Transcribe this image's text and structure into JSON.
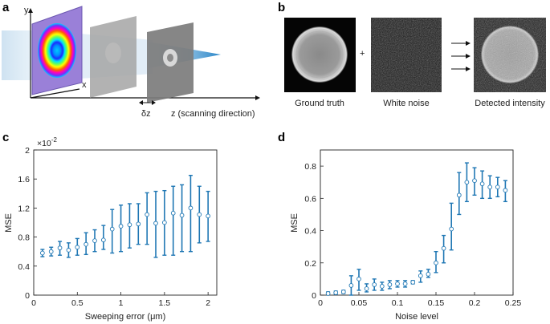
{
  "panels": {
    "a": {
      "label": "a",
      "axis_y": "y",
      "axis_x": "x",
      "delta_z": "δz",
      "z_label": "z (scanning direction)"
    },
    "b": {
      "label": "b",
      "plus": "+",
      "captions": [
        "Ground truth",
        "White noise",
        "Detected intensity"
      ]
    },
    "c": {
      "label": "c"
    },
    "d": {
      "label": "d"
    }
  },
  "colors": {
    "series": "#1f77b4",
    "axis": "#222222"
  },
  "chart_data": [
    {
      "id": "c",
      "type": "scatter",
      "xlabel": "Sweeping error (μm)",
      "ylabel": "MSE",
      "multiplier": "×10",
      "multiplier_exp": "-2",
      "xlim": [
        0,
        2.1
      ],
      "ylim": [
        0,
        2
      ],
      "xticks": [
        0,
        0.5,
        1,
        1.5,
        2
      ],
      "xtick_labels": [
        "0",
        "0.5",
        "1",
        "1.5",
        "2"
      ],
      "yticks": [
        0,
        0.4,
        0.8,
        1.2,
        1.6,
        2
      ],
      "ytick_labels": [
        "0",
        "0.4",
        "0.8",
        "1.2",
        "1.6",
        "2"
      ],
      "x": [
        0.1,
        0.2,
        0.3,
        0.4,
        0.5,
        0.6,
        0.7,
        0.8,
        0.9,
        1.0,
        1.1,
        1.2,
        1.3,
        1.4,
        1.5,
        1.6,
        1.7,
        1.8,
        1.9,
        2.0
      ],
      "y": [
        0.58,
        0.6,
        0.65,
        0.62,
        0.66,
        0.7,
        0.75,
        0.76,
        0.91,
        0.95,
        0.97,
        0.98,
        1.11,
        0.99,
        1.0,
        1.13,
        1.1,
        1.2,
        1.11,
        1.09
      ],
      "err_low": [
        0.53,
        0.54,
        0.55,
        0.52,
        0.55,
        0.56,
        0.6,
        0.63,
        0.58,
        0.6,
        0.65,
        0.7,
        0.7,
        0.52,
        0.55,
        0.55,
        0.6,
        0.6,
        0.72,
        0.74
      ],
      "err_high": [
        0.63,
        0.66,
        0.74,
        0.72,
        0.78,
        0.86,
        0.9,
        0.96,
        1.18,
        1.24,
        1.26,
        1.26,
        1.41,
        1.43,
        1.44,
        1.5,
        1.52,
        1.65,
        1.5,
        1.43
      ]
    },
    {
      "id": "d",
      "type": "scatter",
      "xlabel": "Noise level",
      "ylabel": "MSE",
      "xlim": [
        0,
        0.25
      ],
      "ylim": [
        0,
        0.9
      ],
      "xticks": [
        0,
        0.05,
        0.1,
        0.15,
        0.2,
        0.25
      ],
      "xtick_labels": [
        "0",
        "0.05",
        "0.1",
        "0.15",
        "0.2",
        "0.25"
      ],
      "yticks": [
        0,
        0.2,
        0.4,
        0.6,
        0.8
      ],
      "ytick_labels": [
        "0",
        "0.2",
        "0.4",
        "0.6",
        "0.8"
      ],
      "x": [
        0.01,
        0.02,
        0.03,
        0.04,
        0.05,
        0.06,
        0.07,
        0.08,
        0.09,
        0.1,
        0.11,
        0.12,
        0.13,
        0.14,
        0.15,
        0.16,
        0.17,
        0.18,
        0.19,
        0.2,
        0.21,
        0.22,
        0.23,
        0.24
      ],
      "y": [
        0.01,
        0.015,
        0.02,
        0.06,
        0.1,
        0.04,
        0.065,
        0.055,
        0.065,
        0.07,
        0.07,
        0.08,
        0.12,
        0.13,
        0.2,
        0.29,
        0.41,
        0.62,
        0.7,
        0.71,
        0.69,
        0.67,
        0.67,
        0.65
      ],
      "err_low": [
        0.005,
        0.005,
        0.01,
        0.0,
        0.03,
        0.02,
        0.03,
        0.03,
        0.04,
        0.05,
        0.05,
        0.07,
        0.08,
        0.11,
        0.14,
        0.2,
        0.28,
        0.5,
        0.58,
        0.62,
        0.6,
        0.6,
        0.61,
        0.58
      ],
      "err_high": [
        0.02,
        0.025,
        0.03,
        0.12,
        0.16,
        0.07,
        0.1,
        0.08,
        0.09,
        0.09,
        0.09,
        0.09,
        0.15,
        0.16,
        0.27,
        0.37,
        0.57,
        0.76,
        0.82,
        0.79,
        0.77,
        0.74,
        0.73,
        0.71
      ]
    }
  ]
}
